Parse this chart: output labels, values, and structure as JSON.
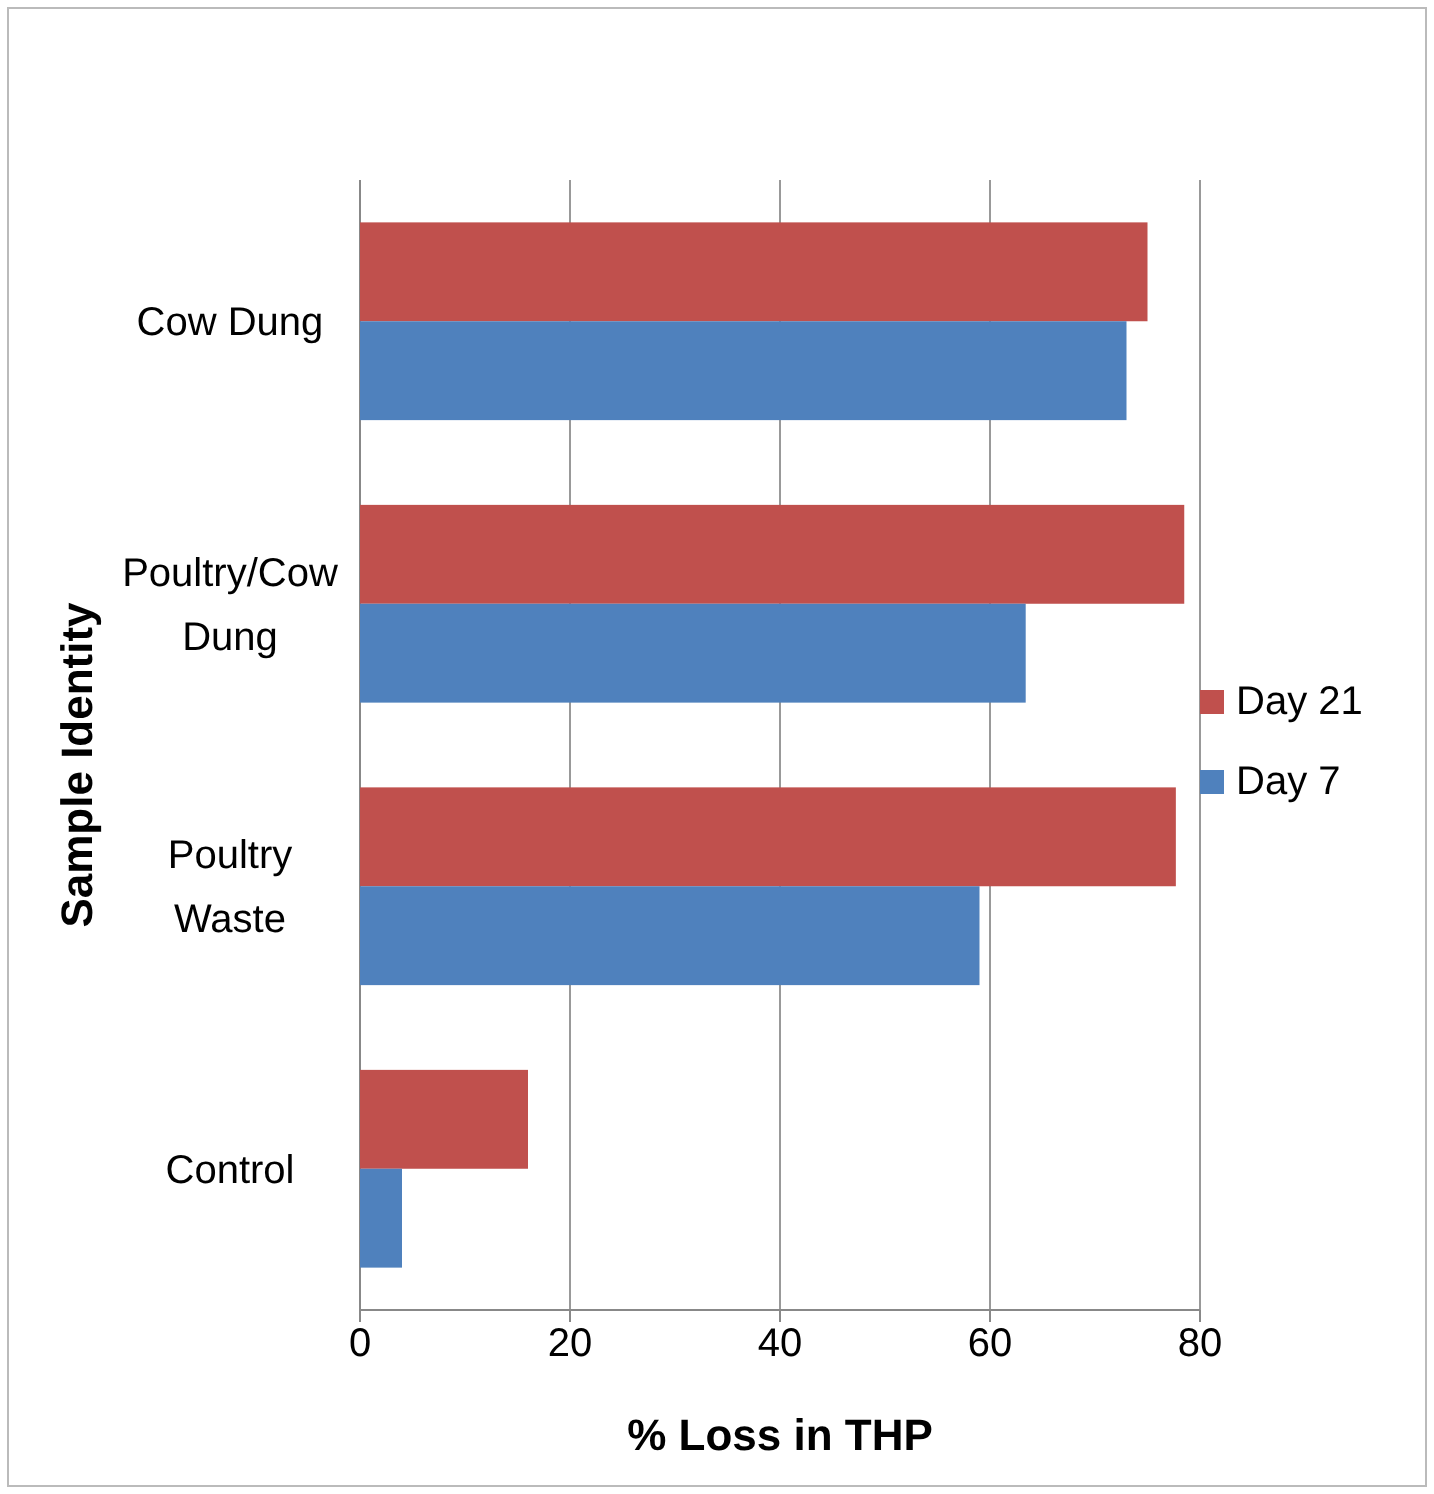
{
  "chart_data": {
    "type": "bar",
    "orientation": "horizontal",
    "xlabel": "% Loss in THP",
    "ylabel": "Sample Identity",
    "categories": [
      "Cow Dung",
      "Poultry/Cow Dung",
      "Poultry Waste",
      "Control"
    ],
    "series": [
      {
        "name": "Day 21",
        "color": "#c0504d",
        "values": [
          75,
          78.5,
          77.7,
          16
        ]
      },
      {
        "name": "Day 7",
        "color": "#4f81bd",
        "values": [
          73,
          63.4,
          59,
          4
        ]
      }
    ],
    "xlim": [
      0,
      80
    ],
    "xticks": [
      0,
      20,
      40,
      60,
      80
    ],
    "grid": "x",
    "legend": "right"
  }
}
